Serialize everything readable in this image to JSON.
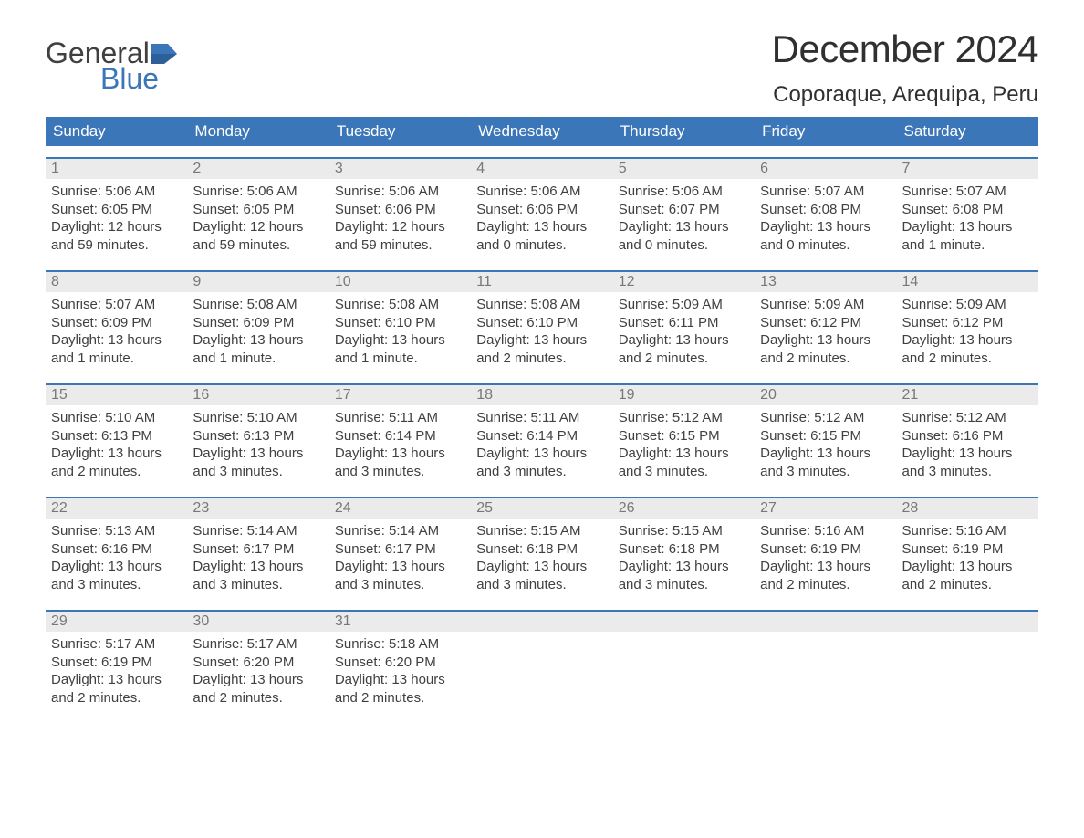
{
  "brand": {
    "word1": "General",
    "word2": "Blue",
    "text_color": "#404040",
    "accent_color": "#3a76b8"
  },
  "title": "December 2024",
  "location": "Coporaque, Arequipa, Peru",
  "colors": {
    "header_bg": "#3a76b8",
    "header_text": "#ffffff",
    "daynum_bg": "#ebebeb",
    "daynum_text": "#787878",
    "body_text": "#404040",
    "row_border": "#3a76b8",
    "page_bg": "#ffffff"
  },
  "typography": {
    "title_fontsize": 42,
    "location_fontsize": 24,
    "weekday_fontsize": 17,
    "daynum_fontsize": 16,
    "detail_fontsize": 15,
    "font_family": "Arial"
  },
  "weekdays": [
    "Sunday",
    "Monday",
    "Tuesday",
    "Wednesday",
    "Thursday",
    "Friday",
    "Saturday"
  ],
  "weeks": [
    [
      {
        "n": "1",
        "sunrise": "Sunrise: 5:06 AM",
        "sunset": "Sunset: 6:05 PM",
        "day1": "Daylight: 12 hours",
        "day2": "and 59 minutes."
      },
      {
        "n": "2",
        "sunrise": "Sunrise: 5:06 AM",
        "sunset": "Sunset: 6:05 PM",
        "day1": "Daylight: 12 hours",
        "day2": "and 59 minutes."
      },
      {
        "n": "3",
        "sunrise": "Sunrise: 5:06 AM",
        "sunset": "Sunset: 6:06 PM",
        "day1": "Daylight: 12 hours",
        "day2": "and 59 minutes."
      },
      {
        "n": "4",
        "sunrise": "Sunrise: 5:06 AM",
        "sunset": "Sunset: 6:06 PM",
        "day1": "Daylight: 13 hours",
        "day2": "and 0 minutes."
      },
      {
        "n": "5",
        "sunrise": "Sunrise: 5:06 AM",
        "sunset": "Sunset: 6:07 PM",
        "day1": "Daylight: 13 hours",
        "day2": "and 0 minutes."
      },
      {
        "n": "6",
        "sunrise": "Sunrise: 5:07 AM",
        "sunset": "Sunset: 6:08 PM",
        "day1": "Daylight: 13 hours",
        "day2": "and 0 minutes."
      },
      {
        "n": "7",
        "sunrise": "Sunrise: 5:07 AM",
        "sunset": "Sunset: 6:08 PM",
        "day1": "Daylight: 13 hours",
        "day2": "and 1 minute."
      }
    ],
    [
      {
        "n": "8",
        "sunrise": "Sunrise: 5:07 AM",
        "sunset": "Sunset: 6:09 PM",
        "day1": "Daylight: 13 hours",
        "day2": "and 1 minute."
      },
      {
        "n": "9",
        "sunrise": "Sunrise: 5:08 AM",
        "sunset": "Sunset: 6:09 PM",
        "day1": "Daylight: 13 hours",
        "day2": "and 1 minute."
      },
      {
        "n": "10",
        "sunrise": "Sunrise: 5:08 AM",
        "sunset": "Sunset: 6:10 PM",
        "day1": "Daylight: 13 hours",
        "day2": "and 1 minute."
      },
      {
        "n": "11",
        "sunrise": "Sunrise: 5:08 AM",
        "sunset": "Sunset: 6:10 PM",
        "day1": "Daylight: 13 hours",
        "day2": "and 2 minutes."
      },
      {
        "n": "12",
        "sunrise": "Sunrise: 5:09 AM",
        "sunset": "Sunset: 6:11 PM",
        "day1": "Daylight: 13 hours",
        "day2": "and 2 minutes."
      },
      {
        "n": "13",
        "sunrise": "Sunrise: 5:09 AM",
        "sunset": "Sunset: 6:12 PM",
        "day1": "Daylight: 13 hours",
        "day2": "and 2 minutes."
      },
      {
        "n": "14",
        "sunrise": "Sunrise: 5:09 AM",
        "sunset": "Sunset: 6:12 PM",
        "day1": "Daylight: 13 hours",
        "day2": "and 2 minutes."
      }
    ],
    [
      {
        "n": "15",
        "sunrise": "Sunrise: 5:10 AM",
        "sunset": "Sunset: 6:13 PM",
        "day1": "Daylight: 13 hours",
        "day2": "and 2 minutes."
      },
      {
        "n": "16",
        "sunrise": "Sunrise: 5:10 AM",
        "sunset": "Sunset: 6:13 PM",
        "day1": "Daylight: 13 hours",
        "day2": "and 3 minutes."
      },
      {
        "n": "17",
        "sunrise": "Sunrise: 5:11 AM",
        "sunset": "Sunset: 6:14 PM",
        "day1": "Daylight: 13 hours",
        "day2": "and 3 minutes."
      },
      {
        "n": "18",
        "sunrise": "Sunrise: 5:11 AM",
        "sunset": "Sunset: 6:14 PM",
        "day1": "Daylight: 13 hours",
        "day2": "and 3 minutes."
      },
      {
        "n": "19",
        "sunrise": "Sunrise: 5:12 AM",
        "sunset": "Sunset: 6:15 PM",
        "day1": "Daylight: 13 hours",
        "day2": "and 3 minutes."
      },
      {
        "n": "20",
        "sunrise": "Sunrise: 5:12 AM",
        "sunset": "Sunset: 6:15 PM",
        "day1": "Daylight: 13 hours",
        "day2": "and 3 minutes."
      },
      {
        "n": "21",
        "sunrise": "Sunrise: 5:12 AM",
        "sunset": "Sunset: 6:16 PM",
        "day1": "Daylight: 13 hours",
        "day2": "and 3 minutes."
      }
    ],
    [
      {
        "n": "22",
        "sunrise": "Sunrise: 5:13 AM",
        "sunset": "Sunset: 6:16 PM",
        "day1": "Daylight: 13 hours",
        "day2": "and 3 minutes."
      },
      {
        "n": "23",
        "sunrise": "Sunrise: 5:14 AM",
        "sunset": "Sunset: 6:17 PM",
        "day1": "Daylight: 13 hours",
        "day2": "and 3 minutes."
      },
      {
        "n": "24",
        "sunrise": "Sunrise: 5:14 AM",
        "sunset": "Sunset: 6:17 PM",
        "day1": "Daylight: 13 hours",
        "day2": "and 3 minutes."
      },
      {
        "n": "25",
        "sunrise": "Sunrise: 5:15 AM",
        "sunset": "Sunset: 6:18 PM",
        "day1": "Daylight: 13 hours",
        "day2": "and 3 minutes."
      },
      {
        "n": "26",
        "sunrise": "Sunrise: 5:15 AM",
        "sunset": "Sunset: 6:18 PM",
        "day1": "Daylight: 13 hours",
        "day2": "and 3 minutes."
      },
      {
        "n": "27",
        "sunrise": "Sunrise: 5:16 AM",
        "sunset": "Sunset: 6:19 PM",
        "day1": "Daylight: 13 hours",
        "day2": "and 2 minutes."
      },
      {
        "n": "28",
        "sunrise": "Sunrise: 5:16 AM",
        "sunset": "Sunset: 6:19 PM",
        "day1": "Daylight: 13 hours",
        "day2": "and 2 minutes."
      }
    ],
    [
      {
        "n": "29",
        "sunrise": "Sunrise: 5:17 AM",
        "sunset": "Sunset: 6:19 PM",
        "day1": "Daylight: 13 hours",
        "day2": "and 2 minutes."
      },
      {
        "n": "30",
        "sunrise": "Sunrise: 5:17 AM",
        "sunset": "Sunset: 6:20 PM",
        "day1": "Daylight: 13 hours",
        "day2": "and 2 minutes."
      },
      {
        "n": "31",
        "sunrise": "Sunrise: 5:18 AM",
        "sunset": "Sunset: 6:20 PM",
        "day1": "Daylight: 13 hours",
        "day2": "and 2 minutes."
      },
      {
        "empty": true
      },
      {
        "empty": true
      },
      {
        "empty": true
      },
      {
        "empty": true
      }
    ]
  ]
}
